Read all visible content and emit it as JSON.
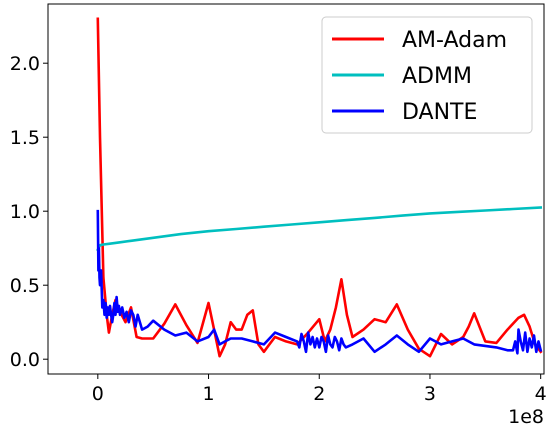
{
  "chart_data": {
    "type": "line",
    "title": "",
    "xlabel": "",
    "ylabel": "",
    "x_offset_label": "1e8",
    "xlim": [
      -0.45,
      4.03
    ],
    "ylim": [
      -0.1,
      2.4
    ],
    "xticks": [
      0,
      1,
      2,
      3,
      4
    ],
    "xtick_labels": [
      "0",
      "1",
      "2",
      "3",
      "4"
    ],
    "yticks": [
      0.0,
      0.5,
      1.0,
      1.5,
      2.0
    ],
    "ytick_labels": [
      "0.0",
      "0.5",
      "1.0",
      "1.5",
      "2.0"
    ],
    "grid": false,
    "legend_position": "upper right",
    "series": [
      {
        "name": "AM-Adam",
        "color": "#ff0000",
        "x": [
          0.0,
          0.02,
          0.05,
          0.08,
          0.1,
          0.13,
          0.16,
          0.2,
          0.25,
          0.3,
          0.35,
          0.4,
          0.5,
          0.6,
          0.7,
          0.8,
          0.9,
          1.0,
          1.05,
          1.1,
          1.15,
          1.2,
          1.25,
          1.3,
          1.35,
          1.4,
          1.45,
          1.5,
          1.55,
          1.6,
          1.7,
          1.8,
          1.9,
          2.0,
          2.05,
          2.1,
          2.15,
          2.2,
          2.25,
          2.3,
          2.4,
          2.5,
          2.6,
          2.7,
          2.8,
          2.9,
          3.0,
          3.1,
          3.2,
          3.3,
          3.35,
          3.4,
          3.5,
          3.6,
          3.7,
          3.8,
          3.85,
          3.9,
          3.95,
          4.0
        ],
        "y": [
          2.3,
          1.5,
          0.55,
          0.3,
          0.18,
          0.3,
          0.4,
          0.32,
          0.25,
          0.35,
          0.15,
          0.14,
          0.14,
          0.24,
          0.37,
          0.23,
          0.11,
          0.38,
          0.2,
          0.02,
          0.1,
          0.25,
          0.2,
          0.2,
          0.3,
          0.33,
          0.1,
          0.05,
          0.1,
          0.15,
          0.12,
          0.1,
          0.18,
          0.27,
          0.12,
          0.2,
          0.35,
          0.54,
          0.3,
          0.15,
          0.2,
          0.27,
          0.25,
          0.37,
          0.2,
          0.07,
          0.02,
          0.17,
          0.1,
          0.15,
          0.22,
          0.31,
          0.12,
          0.11,
          0.2,
          0.28,
          0.3,
          0.22,
          0.1,
          0.05
        ]
      },
      {
        "name": "ADMM",
        "color": "#00bfbf",
        "x": [
          0.0,
          0.02,
          0.05,
          0.1,
          0.2,
          0.3,
          0.5,
          0.75,
          1.0,
          1.25,
          1.5,
          1.75,
          2.0,
          2.25,
          2.5,
          2.75,
          3.0,
          3.25,
          3.5,
          3.75,
          4.0
        ],
        "y": [
          0.74,
          0.77,
          0.775,
          0.78,
          0.79,
          0.8,
          0.82,
          0.845,
          0.865,
          0.88,
          0.895,
          0.91,
          0.925,
          0.94,
          0.955,
          0.97,
          0.985,
          0.995,
          1.005,
          1.015,
          1.025
        ]
      },
      {
        "name": "DANTE",
        "color": "#0000ff",
        "x": [
          0.0,
          0.005,
          0.01,
          0.015,
          0.02,
          0.03,
          0.04,
          0.05,
          0.06,
          0.07,
          0.08,
          0.09,
          0.1,
          0.11,
          0.12,
          0.13,
          0.14,
          0.15,
          0.16,
          0.17,
          0.18,
          0.19,
          0.2,
          0.22,
          0.24,
          0.26,
          0.28,
          0.3,
          0.32,
          0.34,
          0.36,
          0.38,
          0.4,
          0.45,
          0.5,
          0.6,
          0.7,
          0.8,
          0.9,
          1.0,
          1.05,
          1.1,
          1.15,
          1.2,
          1.3,
          1.4,
          1.5,
          1.6,
          1.7,
          1.8,
          1.82,
          1.84,
          1.86,
          1.88,
          1.9,
          1.92,
          1.94,
          1.96,
          1.98,
          2.0,
          2.02,
          2.04,
          2.06,
          2.08,
          2.1,
          2.12,
          2.14,
          2.16,
          2.18,
          2.2,
          2.22,
          2.24,
          2.3,
          2.4,
          2.5,
          2.6,
          2.7,
          2.8,
          2.9,
          3.0,
          3.1,
          3.2,
          3.3,
          3.4,
          3.5,
          3.6,
          3.7,
          3.75,
          3.77,
          3.79,
          3.8,
          3.82,
          3.84,
          3.86,
          3.88,
          3.9,
          3.92,
          3.94,
          3.96,
          3.98,
          4.0
        ],
        "y": [
          1.0,
          0.6,
          0.75,
          0.55,
          0.5,
          0.6,
          0.35,
          0.4,
          0.3,
          0.38,
          0.28,
          0.35,
          0.3,
          0.36,
          0.3,
          0.25,
          0.3,
          0.38,
          0.3,
          0.42,
          0.32,
          0.36,
          0.3,
          0.35,
          0.28,
          0.32,
          0.25,
          0.33,
          0.3,
          0.22,
          0.3,
          0.25,
          0.2,
          0.22,
          0.26,
          0.2,
          0.16,
          0.18,
          0.12,
          0.15,
          0.2,
          0.1,
          0.12,
          0.14,
          0.14,
          0.12,
          0.1,
          0.18,
          0.15,
          0.12,
          0.08,
          0.17,
          0.12,
          0.05,
          0.18,
          0.1,
          0.15,
          0.08,
          0.14,
          0.08,
          0.15,
          0.12,
          0.05,
          0.16,
          0.1,
          0.08,
          0.15,
          0.12,
          0.06,
          0.14,
          0.1,
          0.08,
          0.1,
          0.14,
          0.05,
          0.1,
          0.16,
          0.1,
          0.05,
          0.14,
          0.1,
          0.12,
          0.14,
          0.1,
          0.09,
          0.08,
          0.06,
          0.06,
          0.12,
          0.04,
          0.2,
          0.12,
          0.06,
          0.18,
          0.05,
          0.14,
          0.08,
          0.16,
          0.05,
          0.12,
          0.06
        ]
      }
    ]
  }
}
